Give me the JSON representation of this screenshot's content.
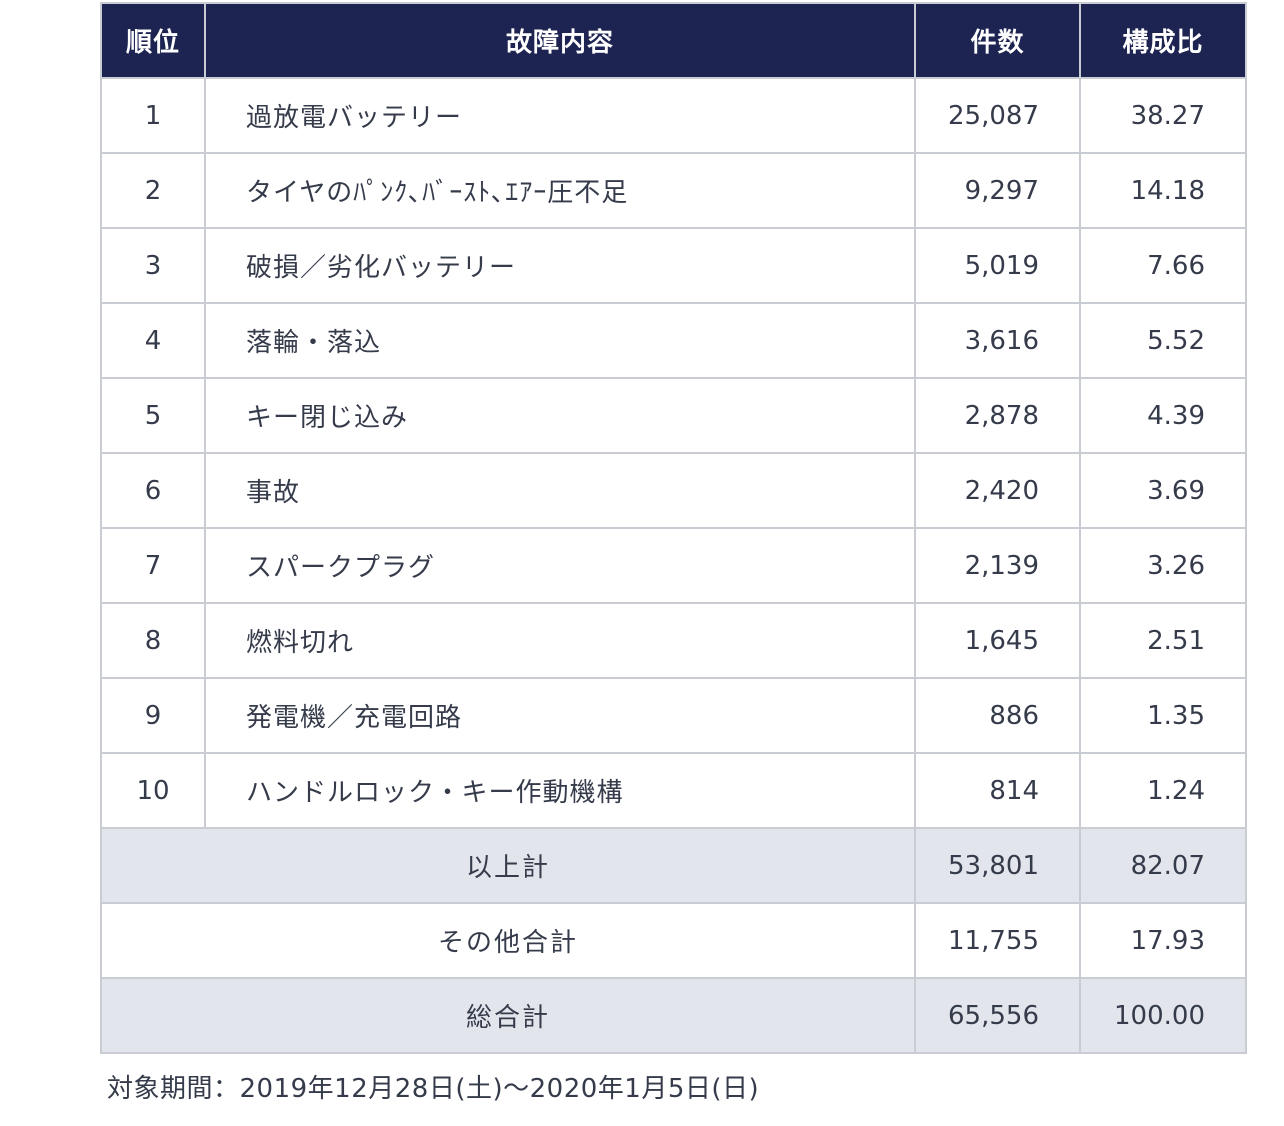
{
  "table": {
    "headers": {
      "rank": "順位",
      "item": "故障内容",
      "count": "件数",
      "ratio": "構成比"
    },
    "rows": [
      {
        "rank": "1",
        "item": "過放電バッテリー",
        "count": "25,087",
        "ratio": "38.27"
      },
      {
        "rank": "2",
        "item": "タイヤのﾊﾟﾝｸ､ﾊﾞｰｽﾄ､ｴｱｰ圧不足",
        "count": "9,297",
        "ratio": "14.18"
      },
      {
        "rank": "3",
        "item": "破損／劣化バッテリー",
        "count": "5,019",
        "ratio": "7.66"
      },
      {
        "rank": "4",
        "item": "落輪・落込",
        "count": "3,616",
        "ratio": "5.52"
      },
      {
        "rank": "5",
        "item": "キー閉じ込み",
        "count": "2,878",
        "ratio": "4.39"
      },
      {
        "rank": "6",
        "item": "事故",
        "count": "2,420",
        "ratio": "3.69"
      },
      {
        "rank": "7",
        "item": "スパークプラグ",
        "count": "2,139",
        "ratio": "3.26"
      },
      {
        "rank": "8",
        "item": "燃料切れ",
        "count": "1,645",
        "ratio": "2.51"
      },
      {
        "rank": "9",
        "item": "発電機／充電回路",
        "count": "886",
        "ratio": "1.35"
      },
      {
        "rank": "10",
        "item": "ハンドルロック・キー作動機構",
        "count": "814",
        "ratio": "1.24"
      }
    ],
    "summary": [
      {
        "label": "以上計",
        "count": "53,801",
        "ratio": "82.07",
        "shaded": true
      },
      {
        "label": "その他合計",
        "count": "11,755",
        "ratio": "17.93",
        "shaded": false
      },
      {
        "label": "総合計",
        "count": "65,556",
        "ratio": "100.00",
        "shaded": true
      }
    ]
  },
  "footnote": "対象期間：2019年12月28日(土)～2020年1月5日(日)"
}
